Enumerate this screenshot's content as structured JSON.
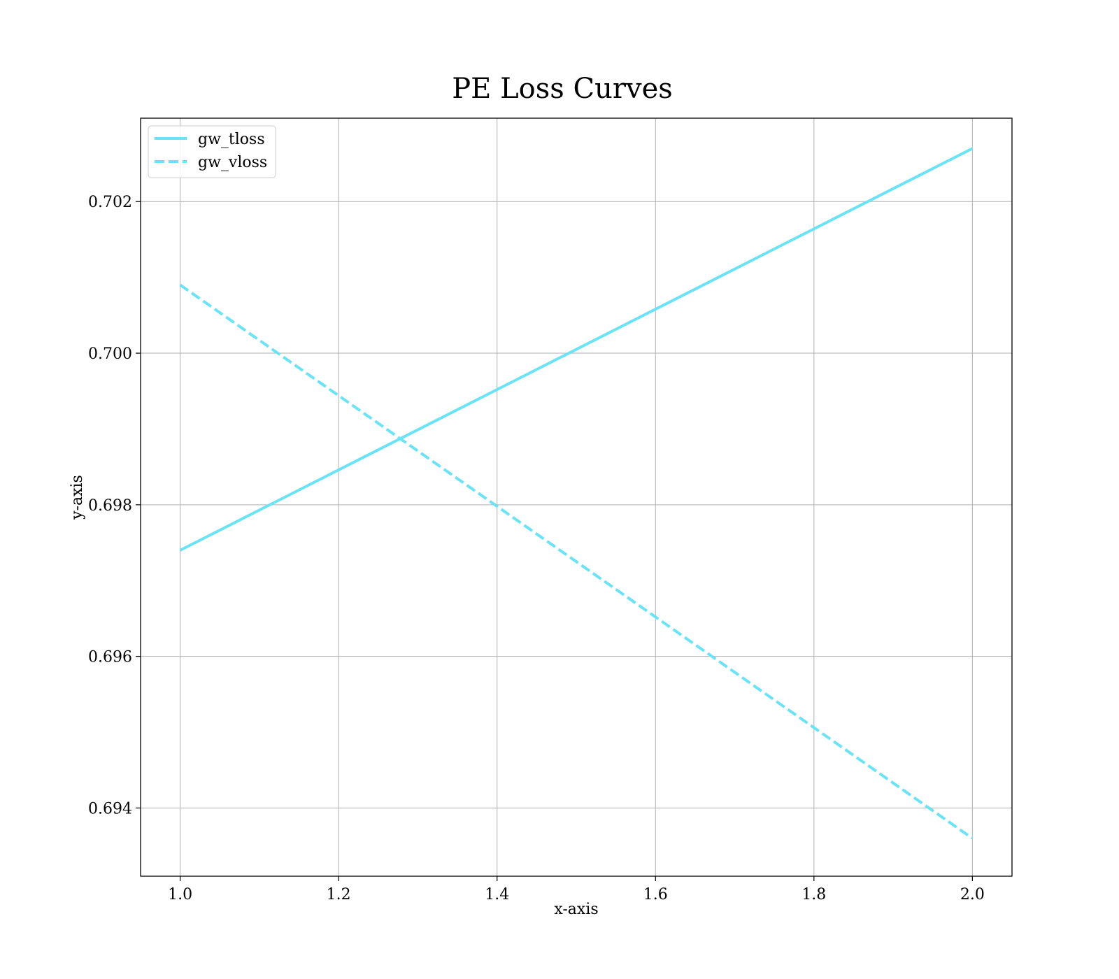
{
  "chart_data": {
    "type": "line",
    "title": "PE Loss Curves",
    "xlabel": "x-axis",
    "ylabel": "y-axis",
    "xlim": [
      0.95,
      2.05
    ],
    "ylim": [
      0.6931,
      0.7031
    ],
    "xticks": [
      1.0,
      1.2,
      1.4,
      1.6,
      1.8,
      2.0
    ],
    "xtick_labels": [
      "1.0",
      "1.2",
      "1.4",
      "1.6",
      "1.8",
      "2.0"
    ],
    "yticks": [
      0.694,
      0.696,
      0.698,
      0.7,
      0.702
    ],
    "ytick_labels": [
      "0.694",
      "0.696",
      "0.698",
      "0.700",
      "0.702"
    ],
    "grid": true,
    "legend_position": "top-left",
    "series": [
      {
        "name": "gw_tloss",
        "x": [
          1.0,
          2.0
        ],
        "y": [
          0.6974,
          0.7027
        ],
        "color": "#6ae3f7",
        "linestyle": "solid"
      },
      {
        "name": "gw_vloss",
        "x": [
          1.0,
          2.0
        ],
        "y": [
          0.7009,
          0.6936
        ],
        "color": "#6ae3f7",
        "linestyle": "dashed"
      }
    ]
  }
}
